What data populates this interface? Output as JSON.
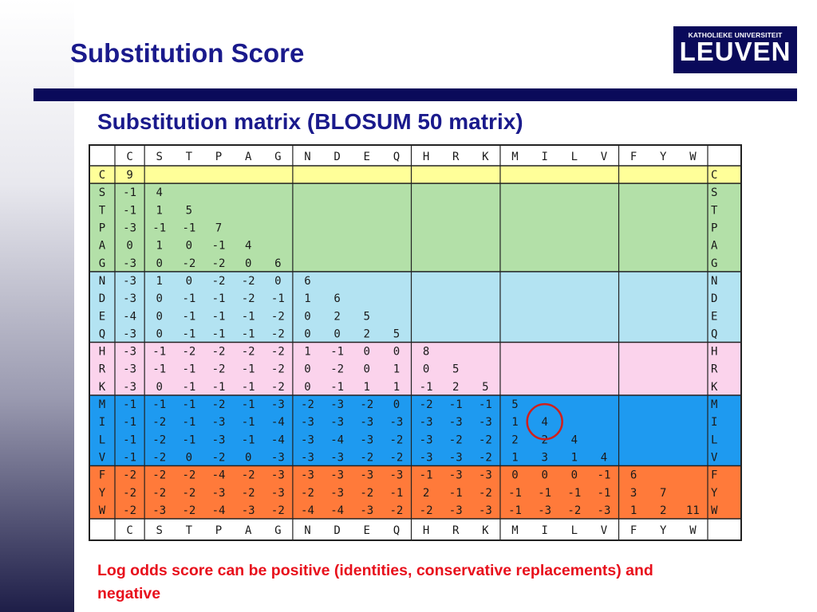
{
  "slide": {
    "title": "Substitution Score",
    "subtitle": "Substitution matrix (BLOSUM 50 matrix)",
    "caption": "Log odds score can be positive (identities, conservative replacements) and negative"
  },
  "logo": {
    "top": "KATHOLIEKE UNIVERSITEIT",
    "main": "LEUVEN"
  },
  "colors": {
    "title": "#1a1a8c",
    "bar": "#0a0a5a",
    "caption": "#e8101c",
    "group_colors": [
      "#ffff99",
      "#b3e0a8",
      "#b3e3f2",
      "#fbd3ec",
      "#1e9af0",
      "#ff7a3a"
    ]
  },
  "matrix": {
    "amino_acids": [
      "C",
      "S",
      "T",
      "P",
      "A",
      "G",
      "N",
      "D",
      "E",
      "Q",
      "H",
      "R",
      "K",
      "M",
      "I",
      "L",
      "V",
      "F",
      "Y",
      "W"
    ],
    "groups": [
      [
        0,
        0
      ],
      [
        1,
        5
      ],
      [
        6,
        9
      ],
      [
        10,
        12
      ],
      [
        13,
        16
      ],
      [
        17,
        19
      ]
    ],
    "rows": [
      [
        9
      ],
      [
        -1,
        4
      ],
      [
        -1,
        1,
        5
      ],
      [
        -3,
        -1,
        -1,
        7
      ],
      [
        0,
        1,
        0,
        -1,
        4
      ],
      [
        -3,
        0,
        -2,
        -2,
        0,
        6
      ],
      [
        -3,
        1,
        0,
        -2,
        -2,
        0,
        6
      ],
      [
        -3,
        0,
        -1,
        -1,
        -2,
        -1,
        1,
        6
      ],
      [
        -4,
        0,
        -1,
        -1,
        -1,
        -2,
        0,
        2,
        5
      ],
      [
        -3,
        0,
        -1,
        -1,
        -1,
        -2,
        0,
        0,
        2,
        5
      ],
      [
        -3,
        -1,
        -2,
        -2,
        -2,
        -2,
        1,
        -1,
        0,
        0,
        8
      ],
      [
        -3,
        -1,
        -1,
        -2,
        -1,
        -2,
        0,
        -2,
        0,
        1,
        0,
        5
      ],
      [
        -3,
        0,
        -1,
        -1,
        -1,
        -2,
        0,
        -1,
        1,
        1,
        -1,
        2,
        5
      ],
      [
        -1,
        -1,
        -1,
        -2,
        -1,
        -3,
        -2,
        -3,
        -2,
        0,
        -2,
        -1,
        -1,
        5
      ],
      [
        -1,
        -2,
        -1,
        -3,
        -1,
        -4,
        -3,
        -3,
        -3,
        -3,
        -3,
        -3,
        -3,
        1,
        4
      ],
      [
        -1,
        -2,
        -1,
        -3,
        -1,
        -4,
        -3,
        -4,
        -3,
        -2,
        -3,
        -2,
        -2,
        2,
        2,
        4
      ],
      [
        -1,
        -2,
        0,
        -2,
        0,
        -3,
        -3,
        -3,
        -2,
        -2,
        -3,
        -3,
        -2,
        1,
        3,
        1,
        4
      ],
      [
        -2,
        -2,
        -2,
        -4,
        -2,
        -3,
        -3,
        -3,
        -3,
        -3,
        -1,
        -3,
        -3,
        0,
        0,
        0,
        -1,
        6
      ],
      [
        -2,
        -2,
        -2,
        -3,
        -2,
        -3,
        -2,
        -3,
        -2,
        -1,
        2,
        -1,
        -2,
        -1,
        -1,
        -1,
        -1,
        3,
        7
      ],
      [
        -2,
        -3,
        -2,
        -4,
        -3,
        -2,
        -4,
        -4,
        -3,
        -2,
        -2,
        -3,
        -3,
        -1,
        -3,
        -2,
        -3,
        1,
        2,
        11
      ]
    ],
    "highlight": {
      "row": 14,
      "col": 14,
      "color": "#d0201c"
    }
  }
}
